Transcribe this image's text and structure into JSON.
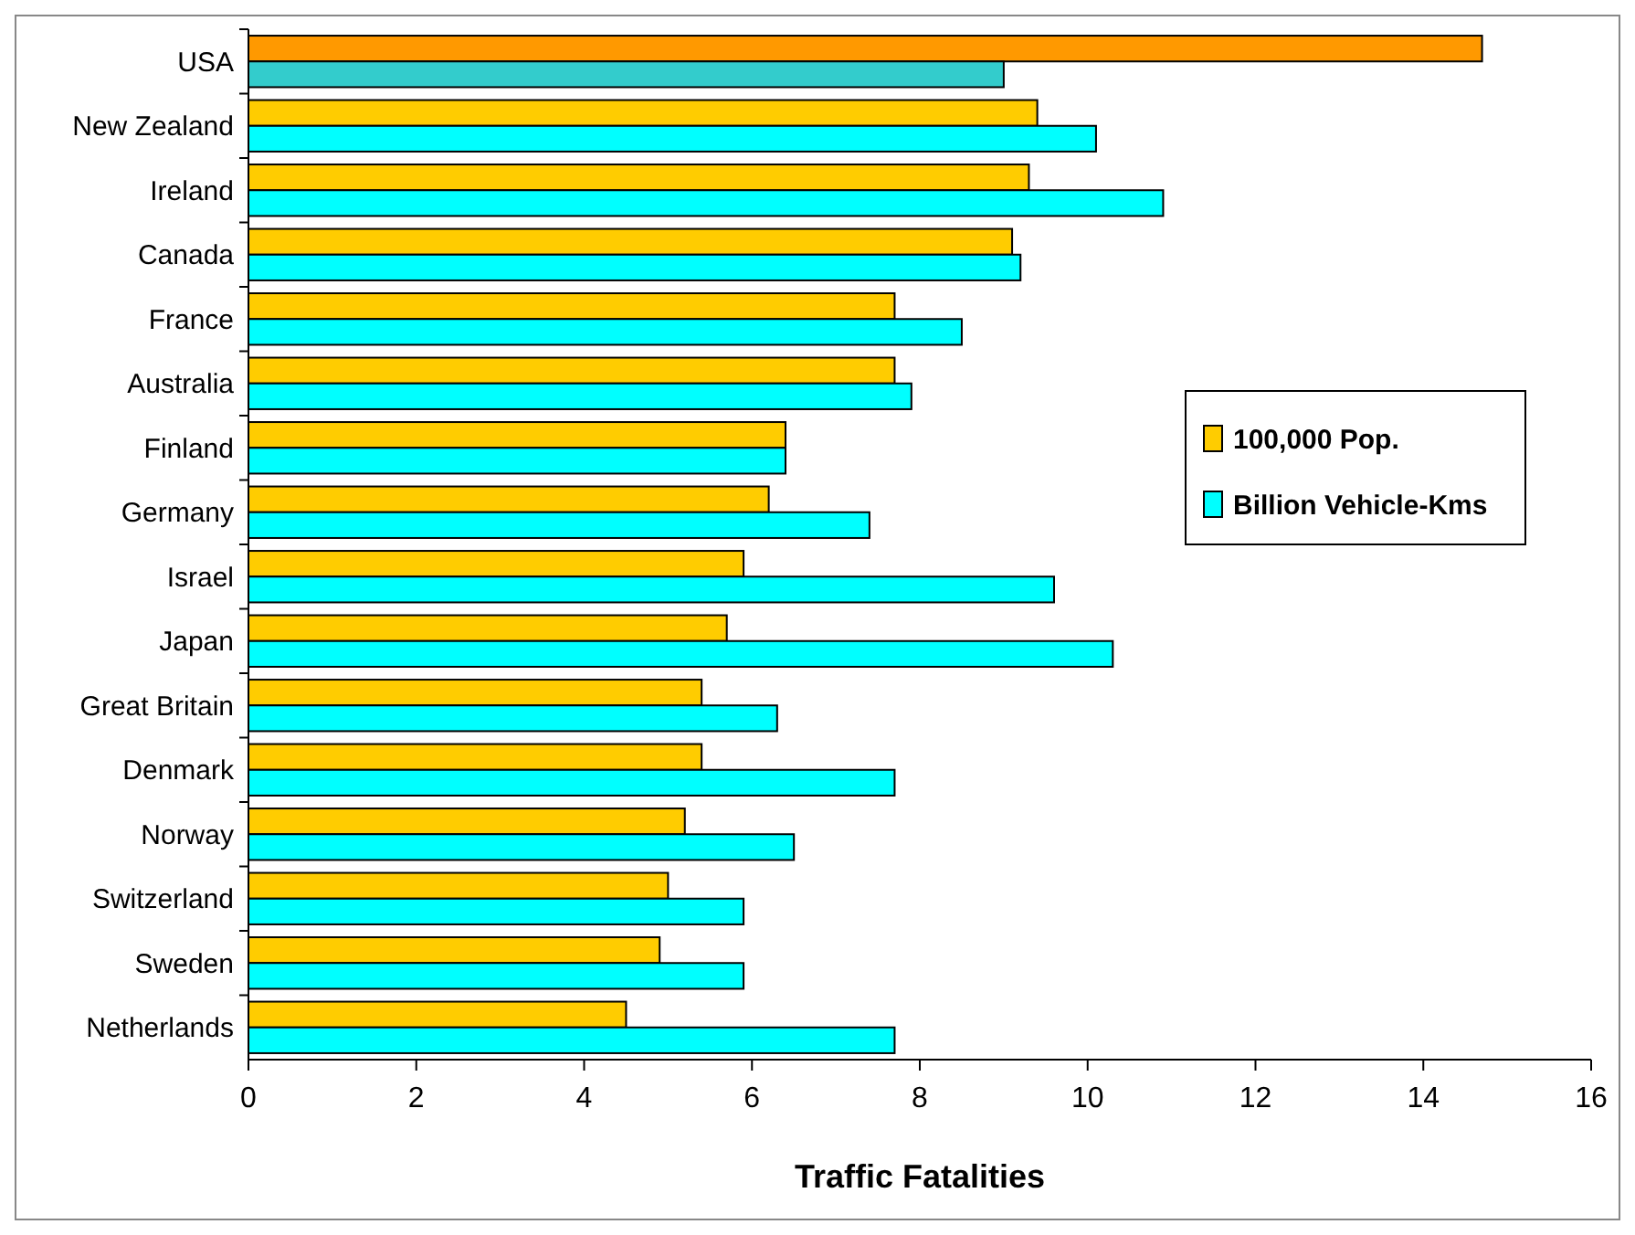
{
  "chart_data": {
    "type": "bar",
    "orientation": "horizontal",
    "xlabel": "Traffic Fatalities",
    "categories": [
      "USA",
      "New Zealand",
      "Ireland",
      "Canada",
      "France",
      "Australia",
      "Finland",
      "Germany",
      "Israel",
      "Japan",
      "Great Britain",
      "Denmark",
      "Norway",
      "Switzerland",
      "Sweden",
      "Netherlands"
    ],
    "series": [
      {
        "name": "100,000 Pop.",
        "color": "#ffcc00",
        "colors": [
          "#ff9900",
          "#ffcc00",
          "#ffcc00",
          "#ffcc00",
          "#ffcc00",
          "#ffcc00",
          "#ffcc00",
          "#ffcc00",
          "#ffcc00",
          "#ffcc00",
          "#ffcc00",
          "#ffcc00",
          "#ffcc00",
          "#ffcc00",
          "#ffcc00",
          "#ffcc00"
        ],
        "values": [
          14.7,
          9.4,
          9.3,
          9.1,
          7.7,
          7.7,
          6.4,
          6.2,
          5.9,
          5.7,
          5.4,
          5.4,
          5.2,
          5.0,
          4.9,
          4.5
        ]
      },
      {
        "name": "Billion Vehicle-Kms",
        "color": "#00ffff",
        "colors": [
          "#33cccc",
          "#00ffff",
          "#00ffff",
          "#00ffff",
          "#00ffff",
          "#00ffff",
          "#00ffff",
          "#00ffff",
          "#00ffff",
          "#00ffff",
          "#00ffff",
          "#00ffff",
          "#00ffff",
          "#00ffff",
          "#00ffff",
          "#00ffff"
        ],
        "values": [
          9.0,
          10.1,
          10.9,
          9.2,
          8.5,
          7.9,
          6.4,
          7.4,
          9.6,
          10.3,
          6.3,
          7.7,
          6.5,
          5.9,
          5.9,
          7.7
        ]
      }
    ],
    "xlim": [
      0,
      16
    ],
    "xticks": [
      0,
      2,
      4,
      6,
      8,
      10,
      12,
      14,
      16
    ],
    "legend": "right"
  }
}
